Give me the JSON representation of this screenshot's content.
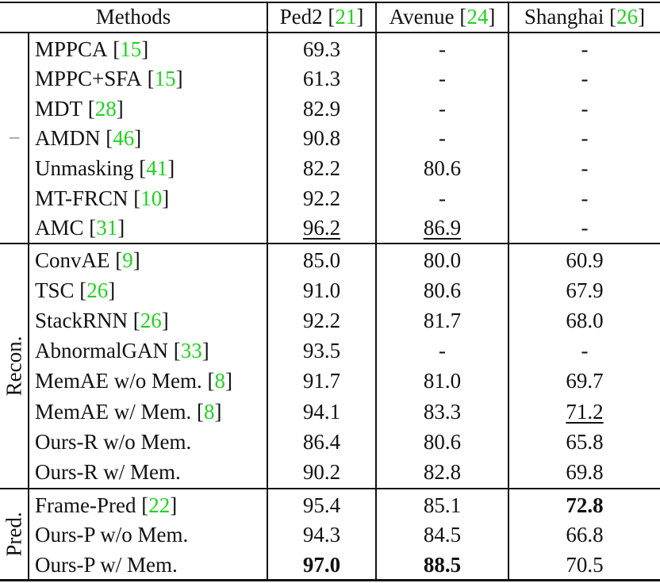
{
  "table": {
    "header": {
      "methods": "Methods",
      "columns": [
        {
          "name": "Ped2",
          "cite": "21"
        },
        {
          "name": "Avenue",
          "cite": "24"
        },
        {
          "name": "Shanghai",
          "cite": "26"
        }
      ]
    },
    "groups": [
      {
        "label": "",
        "rows": [
          {
            "method": "MPPCA",
            "cite": "15",
            "values": [
              "69.3",
              "-",
              "-"
            ]
          },
          {
            "method": "MPPC+SFA",
            "cite": "15",
            "values": [
              "61.3",
              "-",
              "-"
            ]
          },
          {
            "method": "MDT",
            "cite": "28",
            "values": [
              "82.9",
              "-",
              "-"
            ]
          },
          {
            "method": "AMDN",
            "cite": "46",
            "values": [
              "90.8",
              "-",
              "-"
            ]
          },
          {
            "method": "Unmasking",
            "cite": "41",
            "values": [
              "82.2",
              "80.6",
              "-"
            ]
          },
          {
            "method": "MT-FRCN",
            "cite": "10",
            "values": [
              "92.2",
              "-",
              "-"
            ]
          },
          {
            "method": "AMC",
            "cite": "31",
            "values": [
              "96.2",
              "86.9",
              "-"
            ],
            "underline": [
              0,
              1
            ]
          }
        ]
      },
      {
        "label": "Recon.",
        "rows": [
          {
            "method": "ConvAE",
            "cite": "9",
            "values": [
              "85.0",
              "80.0",
              "60.9"
            ]
          },
          {
            "method": "TSC",
            "cite": "26",
            "values": [
              "91.0",
              "80.6",
              "67.9"
            ]
          },
          {
            "method": "StackRNN",
            "cite": "26",
            "values": [
              "92.2",
              "81.7",
              "68.0"
            ]
          },
          {
            "method": "AbnormalGAN",
            "cite": "33",
            "values": [
              "93.5",
              "-",
              "-"
            ]
          },
          {
            "method": "MemAE w/o Mem.",
            "cite": "8",
            "values": [
              "91.7",
              "81.0",
              "69.7"
            ]
          },
          {
            "method": "MemAE w/ Mem.",
            "cite": "8",
            "values": [
              "94.1",
              "83.3",
              "71.2"
            ],
            "underline": [
              2
            ]
          },
          {
            "method": "Ours-R w/o Mem.",
            "cite": "",
            "values": [
              "86.4",
              "80.6",
              "65.8"
            ]
          },
          {
            "method": "Ours-R w/ Mem.",
            "cite": "",
            "values": [
              "90.2",
              "82.8",
              "69.8"
            ]
          }
        ]
      },
      {
        "label": "Pred.",
        "rows": [
          {
            "method": "Frame-Pred",
            "cite": "22",
            "values": [
              "95.4",
              "85.1",
              "72.8"
            ],
            "bold": [
              2
            ]
          },
          {
            "method": "Ours-P w/o Mem.",
            "cite": "",
            "values": [
              "94.3",
              "84.5",
              "66.8"
            ]
          },
          {
            "method": "Ours-P w/ Mem.",
            "cite": "",
            "values": [
              "97.0",
              "88.5",
              "70.5"
            ],
            "bold": [
              0,
              1
            ]
          }
        ]
      }
    ],
    "colors": {
      "citation": "#22d022",
      "text": "#111111",
      "rule": "#111111"
    }
  }
}
